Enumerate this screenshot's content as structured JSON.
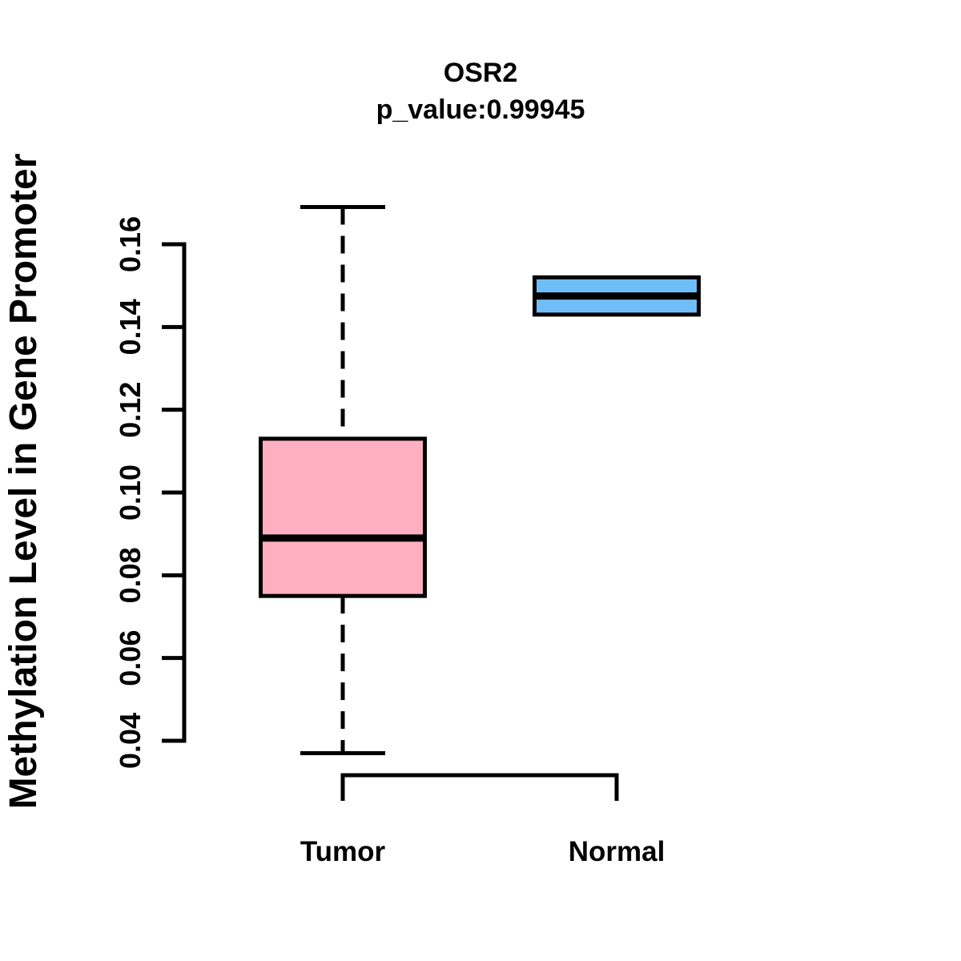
{
  "header": {
    "title": "OSR2",
    "subtitle": "p_value:0.99945",
    "p_value": "0.99945"
  },
  "chart_data": {
    "type": "boxplot",
    "title": "OSR2",
    "subtitle": "p_value:0.99945",
    "ylabel": "Methylation Level in Gene Promoter",
    "xlabel": "",
    "categories": [
      "Tumor",
      "Normal"
    ],
    "yticks": [
      0.04,
      0.06,
      0.08,
      0.1,
      0.12,
      0.14,
      0.16
    ],
    "ytick_labels": [
      "0.04",
      "0.06",
      "0.08",
      "0.10",
      "0.12",
      "0.14",
      "0.16"
    ],
    "ylim": [
      0.037,
      0.169
    ],
    "grid": false,
    "legend": "none",
    "series": [
      {
        "name": "Tumor",
        "fill_color": "#FFAFC0",
        "min": 0.037,
        "q1": 0.075,
        "median": 0.089,
        "q3": 0.113,
        "max": 0.169,
        "whiskers_visible": true,
        "whisker_style": "dashed",
        "outliers": []
      },
      {
        "name": "Normal",
        "fill_color": "#70BEF8",
        "min": 0.143,
        "q1": 0.143,
        "median": 0.1475,
        "q3": 0.152,
        "max": 0.152,
        "whiskers_visible": false,
        "whisker_style": "none",
        "outliers": []
      }
    ],
    "box_border_color": "#000000",
    "median_color": "#000000",
    "axis_color": "#000000"
  }
}
